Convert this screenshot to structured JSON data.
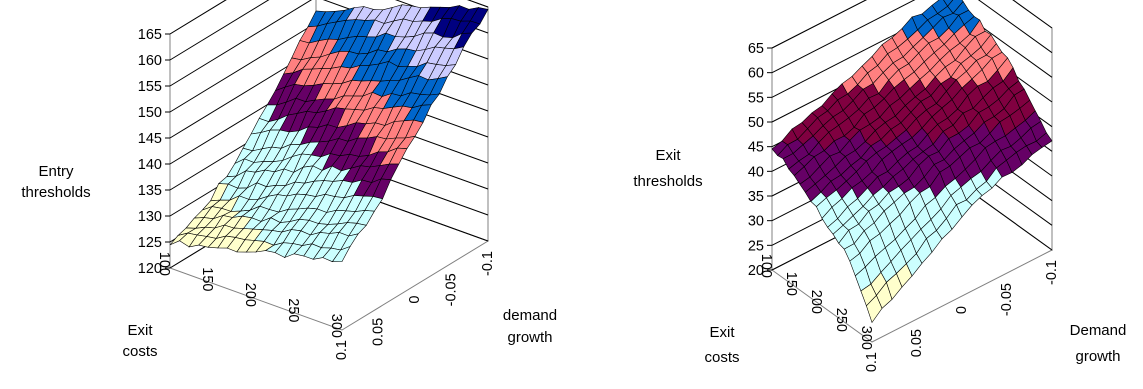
{
  "chart_data": [
    {
      "type": "surface",
      "zlabel": [
        "Entry",
        "thresholds"
      ],
      "xlabel": [
        "Exit",
        "costs"
      ],
      "ylabel": [
        "demand",
        "growth"
      ],
      "zlim": [
        120,
        165
      ],
      "z_ticks": [
        120,
        125,
        130,
        135,
        140,
        145,
        150,
        155,
        160,
        165
      ],
      "x_ticks": [
        "100",
        "150",
        "200",
        "250",
        "300"
      ],
      "y_ticks": [
        "0.1",
        "0.05",
        "0",
        "-0.05",
        "-0.1"
      ],
      "exit_costs": [
        100,
        150,
        200,
        250,
        300
      ],
      "demand_growth": [
        0.1,
        0.05,
        0,
        -0.05,
        -0.1
      ],
      "values": [
        [
          125,
          128,
          134,
          143,
          152
        ],
        [
          127,
          131,
          138,
          147,
          156
        ],
        [
          129,
          134,
          142,
          151,
          159
        ],
        [
          131,
          137,
          145,
          154,
          162
        ],
        [
          133,
          140,
          149,
          157,
          165
        ]
      ],
      "bands": [
        {
          "from": 120,
          "to": 130,
          "color": "#ffffcc"
        },
        {
          "from": 130,
          "to": 140,
          "color": "#ccffff"
        },
        {
          "from": 140,
          "to": 145,
          "color": "#660066"
        },
        {
          "from": 145,
          "to": 150,
          "color": "#ff8080"
        },
        {
          "from": 150,
          "to": 155,
          "color": "#0066cc"
        },
        {
          "from": 155,
          "to": 160,
          "color": "#ccccff"
        },
        {
          "from": 160,
          "to": 165,
          "color": "#000080"
        }
      ],
      "grid": true
    },
    {
      "type": "surface",
      "zlabel": [
        "Exit",
        "thresholds"
      ],
      "xlabel": [
        "Exit",
        "costs"
      ],
      "ylabel": [
        "Demand",
        "growth"
      ],
      "zlim": [
        20,
        65
      ],
      "z_ticks": [
        20,
        25,
        30,
        35,
        40,
        45,
        50,
        55,
        60,
        65
      ],
      "x_ticks": [
        "100",
        "150",
        "200",
        "250",
        "300"
      ],
      "y_ticks": [
        "0.1",
        "0.05",
        "0",
        "-0.05",
        "-0.1"
      ],
      "exit_costs": [
        100,
        150,
        200,
        250,
        300
      ],
      "demand_growth": [
        0.1,
        0.05,
        0,
        -0.05,
        -0.1
      ],
      "values": [
        [
          45,
          48,
          52,
          56,
          58
        ],
        [
          42,
          45,
          48,
          52,
          56
        ],
        [
          38,
          42,
          45,
          49,
          53
        ],
        [
          34,
          38,
          42,
          45,
          48
        ],
        [
          24,
          30,
          36,
          40,
          42
        ]
      ],
      "bands": [
        {
          "from": 20,
          "to": 30,
          "color": "#ffffcc"
        },
        {
          "from": 30,
          "to": 40,
          "color": "#ccffff"
        },
        {
          "from": 40,
          "to": 45,
          "color": "#660066"
        },
        {
          "from": 45,
          "to": 50,
          "color": "#800040"
        },
        {
          "from": 50,
          "to": 55,
          "color": "#ff8080"
        },
        {
          "from": 55,
          "to": 60,
          "color": "#0066cc"
        },
        {
          "from": 60,
          "to": 65,
          "color": "#ccccff"
        }
      ],
      "grid": true
    }
  ]
}
